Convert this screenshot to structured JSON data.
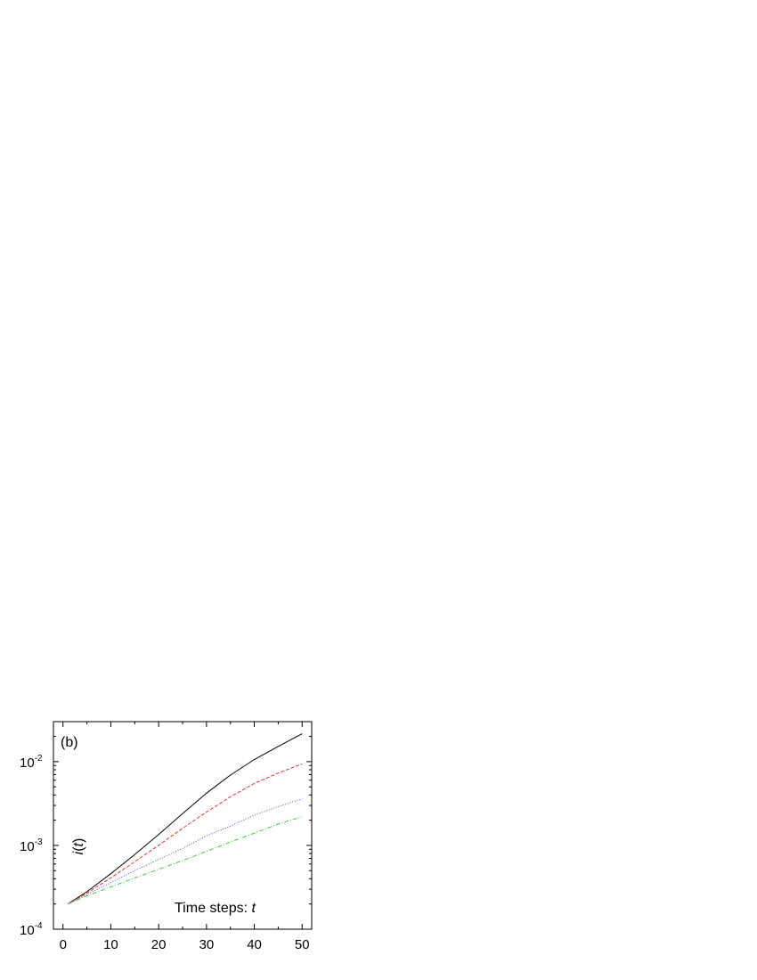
{
  "chart_data": {
    "type": "line",
    "panel_label": "(b)",
    "ylabel": {
      "italic_prefix": "i",
      "open": "(",
      "italic_var": "t",
      "close": ")"
    },
    "annotation": {
      "text": "Time steps: ",
      "italic": "t"
    },
    "x_scale": "linear",
    "y_scale": "log",
    "xlim": [
      -2,
      52
    ],
    "ylim": [
      0.0001,
      0.03
    ],
    "x_ticks": [
      0,
      10,
      20,
      30,
      40,
      50
    ],
    "x_tick_labels": [
      "0",
      "10",
      "20",
      "30",
      "40",
      "50"
    ],
    "y_ticks": [
      {
        "value": 0.0001,
        "base": "10",
        "exp": "-4"
      },
      {
        "value": 0.001,
        "base": "10",
        "exp": "-3"
      },
      {
        "value": 0.01,
        "base": "10",
        "exp": "-2"
      }
    ],
    "grid": false,
    "x": [
      1,
      5,
      10,
      15,
      20,
      25,
      30,
      35,
      40,
      45,
      50
    ],
    "series": [
      {
        "color": "#000000",
        "style": "solid",
        "values": [
          0.0002,
          0.00028,
          0.00046,
          0.00078,
          0.00135,
          0.0024,
          0.0042,
          0.0069,
          0.0106,
          0.0152,
          0.0215
        ]
      },
      {
        "color": "#e8302c",
        "style": "dashed",
        "values": [
          0.0002,
          0.00027,
          0.00041,
          0.00064,
          0.001,
          0.0016,
          0.0025,
          0.0038,
          0.0055,
          0.0073,
          0.0094
        ]
      },
      {
        "color": "#6a6ad8",
        "style": "dotted",
        "values": [
          0.0002,
          0.00026,
          0.00036,
          0.0005,
          0.00068,
          0.00092,
          0.0013,
          0.0017,
          0.0023,
          0.0029,
          0.0036
        ]
      },
      {
        "color": "#3ccc3c",
        "style": "dashdot",
        "values": [
          0.0002,
          0.00025,
          0.00032,
          0.00041,
          0.00052,
          0.00066,
          0.00085,
          0.0011,
          0.0014,
          0.0018,
          0.0022
        ]
      }
    ]
  }
}
